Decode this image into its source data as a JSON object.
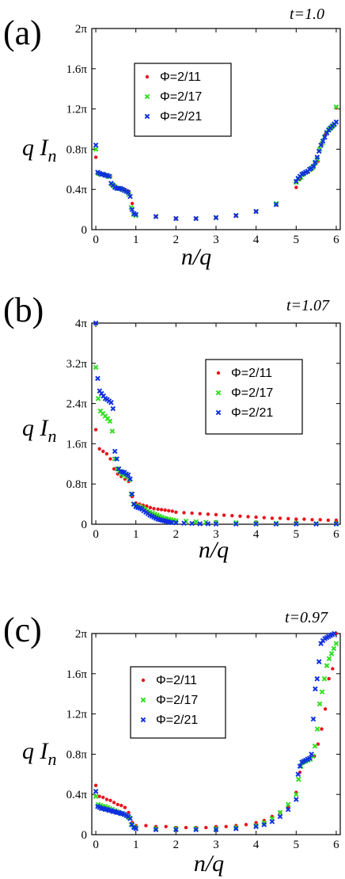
{
  "colors": {
    "red": "#e8141e",
    "green": "#33dd22",
    "blue": "#1030e0"
  },
  "chart_data": [
    {
      "type": "scatter",
      "panel": "(a)",
      "title": "t=1.0",
      "xlabel": "n/q",
      "ylabel": "q I",
      "ylabel_sub": "n",
      "xlim": [
        -0.1,
        6.1
      ],
      "ylim": [
        0,
        2
      ],
      "xticks": [
        0,
        1,
        2,
        3,
        4,
        5,
        6
      ],
      "xtick_labels": [
        "0",
        "1",
        "2",
        "3",
        "4",
        "5",
        "6"
      ],
      "yticks": [
        0,
        0.4,
        0.8,
        1.2,
        1.6,
        2.0
      ],
      "ytick_labels": [
        "0",
        "0.4π",
        "0.8π",
        "1.2π",
        "1.6π",
        "2π"
      ],
      "legend_position": "upper-left",
      "series": [
        {
          "name": "Φ=2/11",
          "color": "red",
          "marker": "dot",
          "x": [
            0,
            0.091,
            0.182,
            0.273,
            0.364,
            0.455,
            0.545,
            0.636,
            0.727,
            0.818,
            0.909,
            1.0,
            1.5,
            2.0,
            2.5,
            3.0,
            3.5,
            4.0,
            4.5,
            5.0,
            5.091,
            5.182,
            5.273,
            5.364,
            5.455,
            5.545,
            5.636,
            5.727,
            5.818,
            5.909,
            6.0
          ],
          "y": [
            0.72,
            0.56,
            0.55,
            0.54,
            0.53,
            0.44,
            0.42,
            0.41,
            0.4,
            0.38,
            0.26,
            0.15,
            0.13,
            0.11,
            0.11,
            0.12,
            0.14,
            0.18,
            0.25,
            0.42,
            0.5,
            0.55,
            0.57,
            0.6,
            0.64,
            0.68,
            0.85,
            0.95,
            1.0,
            1.03,
            1.21
          ]
        },
        {
          "name": "Φ=2/17",
          "color": "green",
          "marker": "x",
          "x": [
            0,
            0.059,
            0.118,
            0.176,
            0.235,
            0.294,
            0.353,
            0.412,
            0.471,
            0.529,
            0.588,
            0.647,
            0.706,
            0.765,
            0.824,
            0.882,
            0.941,
            1.0,
            1.5,
            2.0,
            2.5,
            3.0,
            3.5,
            4.0,
            4.5,
            5.0,
            5.059,
            5.118,
            5.176,
            5.235,
            5.294,
            5.353,
            5.412,
            5.471,
            5.529,
            5.588,
            5.647,
            5.706,
            5.765,
            5.824,
            5.882,
            5.941,
            6.0
          ],
          "y": [
            0.8,
            0.56,
            0.55,
            0.55,
            0.54,
            0.53,
            0.53,
            0.45,
            0.43,
            0.41,
            0.41,
            0.4,
            0.39,
            0.38,
            0.35,
            0.22,
            0.15,
            0.14,
            0.13,
            0.11,
            0.11,
            0.12,
            0.14,
            0.18,
            0.26,
            0.47,
            0.5,
            0.52,
            0.55,
            0.57,
            0.58,
            0.6,
            0.62,
            0.66,
            0.7,
            0.8,
            0.86,
            0.92,
            0.97,
            1.0,
            1.02,
            1.04,
            1.22
          ]
        },
        {
          "name": "Φ=2/21",
          "color": "blue",
          "marker": "x",
          "x": [
            0,
            0.048,
            0.095,
            0.143,
            0.19,
            0.238,
            0.286,
            0.333,
            0.381,
            0.429,
            0.476,
            0.524,
            0.571,
            0.619,
            0.667,
            0.714,
            0.762,
            0.81,
            0.857,
            0.905,
            0.952,
            1.0,
            1.5,
            2.0,
            2.5,
            3.0,
            3.5,
            4.0,
            4.5,
            5.0,
            5.048,
            5.095,
            5.143,
            5.19,
            5.238,
            5.286,
            5.333,
            5.381,
            5.429,
            5.476,
            5.524,
            5.571,
            5.619,
            5.667,
            5.714,
            5.762,
            5.81,
            5.857,
            5.905,
            5.952,
            6.0
          ],
          "y": [
            0.84,
            0.57,
            0.56,
            0.55,
            0.55,
            0.54,
            0.54,
            0.53,
            0.46,
            0.44,
            0.42,
            0.41,
            0.41,
            0.41,
            0.4,
            0.39,
            0.38,
            0.37,
            0.33,
            0.2,
            0.16,
            0.15,
            0.13,
            0.11,
            0.11,
            0.12,
            0.14,
            0.18,
            0.25,
            0.48,
            0.51,
            0.53,
            0.55,
            0.56,
            0.57,
            0.58,
            0.6,
            0.61,
            0.63,
            0.67,
            0.72,
            0.78,
            0.84,
            0.88,
            0.92,
            0.96,
            0.99,
            1.01,
            1.03,
            1.05,
            1.07
          ]
        }
      ]
    },
    {
      "type": "scatter",
      "panel": "(b)",
      "title": "t=1.07",
      "xlabel": "n/q",
      "ylabel": "q I",
      "ylabel_sub": "n",
      "xlim": [
        -0.1,
        6.1
      ],
      "ylim": [
        0,
        4
      ],
      "xticks": [
        0,
        1,
        2,
        3,
        4,
        5,
        6
      ],
      "xtick_labels": [
        "0",
        "1",
        "2",
        "3",
        "4",
        "5",
        "6"
      ],
      "yticks": [
        0,
        0.8,
        1.6,
        2.4,
        3.2,
        4.0
      ],
      "ytick_labels": [
        "0",
        "0.8π",
        "1.6π",
        "2.4π",
        "3.2π",
        "4π"
      ],
      "legend_position": "upper-right",
      "series": [
        {
          "name": "Φ=2/11",
          "color": "red",
          "marker": "dot",
          "x": [
            0,
            0.091,
            0.182,
            0.273,
            0.364,
            0.455,
            0.545,
            0.636,
            0.727,
            0.818,
            0.909,
            1.0,
            1.09,
            1.18,
            1.27,
            1.36,
            1.45,
            1.55,
            1.64,
            1.73,
            1.82,
            1.91,
            2.0,
            2.2,
            2.4,
            2.6,
            2.8,
            3.0,
            3.2,
            3.4,
            3.6,
            3.8,
            4.0,
            4.2,
            4.4,
            4.6,
            4.8,
            5.0,
            5.2,
            5.4,
            5.6,
            5.8,
            6.0
          ],
          "y": [
            1.88,
            1.5,
            1.45,
            1.4,
            1.3,
            1.1,
            1.0,
            0.95,
            0.9,
            0.85,
            0.55,
            0.42,
            0.4,
            0.38,
            0.36,
            0.33,
            0.31,
            0.3,
            0.29,
            0.28,
            0.27,
            0.26,
            0.24,
            0.23,
            0.22,
            0.21,
            0.2,
            0.19,
            0.18,
            0.17,
            0.16,
            0.15,
            0.14,
            0.13,
            0.12,
            0.12,
            0.11,
            0.1,
            0.1,
            0.09,
            0.09,
            0.08,
            0.08
          ]
        },
        {
          "name": "Φ=2/17",
          "color": "green",
          "marker": "x",
          "x": [
            0,
            0.059,
            0.118,
            0.176,
            0.235,
            0.294,
            0.353,
            0.412,
            0.471,
            0.529,
            0.588,
            0.647,
            0.706,
            0.765,
            0.824,
            0.882,
            0.941,
            1.0,
            1.06,
            1.12,
            1.18,
            1.24,
            1.29,
            1.35,
            1.41,
            1.47,
            1.53,
            1.59,
            1.65,
            1.71,
            1.76,
            1.82,
            1.88,
            1.94,
            2.0,
            2.25,
            2.5,
            2.75,
            3.0,
            3.5,
            4.0,
            4.5,
            5.0,
            5.5,
            6.0
          ],
          "y": [
            3.12,
            2.5,
            2.25,
            2.2,
            2.15,
            2.1,
            2.05,
            1.85,
            1.3,
            1.1,
            1.05,
            1.0,
            0.98,
            0.95,
            0.88,
            0.6,
            0.4,
            0.37,
            0.36,
            0.34,
            0.32,
            0.29,
            0.26,
            0.24,
            0.22,
            0.2,
            0.18,
            0.16,
            0.14,
            0.12,
            0.11,
            0.1,
            0.09,
            0.08,
            0.07,
            0.06,
            0.05,
            0.04,
            0.035,
            0.03,
            0.025,
            0.02,
            0.02,
            0.015,
            0.015
          ]
        },
        {
          "name": "Φ=2/21",
          "color": "blue",
          "marker": "x",
          "x": [
            0,
            0.048,
            0.095,
            0.143,
            0.19,
            0.238,
            0.286,
            0.333,
            0.381,
            0.429,
            0.476,
            0.524,
            0.571,
            0.619,
            0.667,
            0.714,
            0.762,
            0.81,
            0.857,
            0.905,
            0.952,
            1.0,
            1.05,
            1.1,
            1.15,
            1.2,
            1.25,
            1.3,
            1.35,
            1.4,
            1.45,
            1.5,
            1.55,
            1.6,
            1.65,
            1.7,
            1.75,
            1.8,
            1.85,
            1.9,
            2.0,
            2.2,
            2.4,
            2.6,
            2.8,
            3.0,
            3.5,
            4.0,
            4.5,
            5.0,
            5.5,
            6.0
          ],
          "y": [
            4.0,
            2.9,
            2.65,
            2.6,
            2.55,
            2.5,
            2.48,
            2.45,
            2.42,
            2.3,
            1.45,
            1.3,
            1.1,
            1.05,
            1.04,
            1.03,
            1.0,
            0.98,
            0.9,
            0.6,
            0.4,
            0.35,
            0.33,
            0.32,
            0.3,
            0.27,
            0.24,
            0.21,
            0.18,
            0.16,
            0.14,
            0.12,
            0.1,
            0.09,
            0.08,
            0.07,
            0.06,
            0.05,
            0.04,
            0.035,
            0.03,
            0.02,
            0.015,
            0.01,
            0.01,
            0.005,
            0.005,
            0.005,
            0.005,
            0.005,
            0.005,
            0.005
          ]
        }
      ]
    },
    {
      "type": "scatter",
      "panel": "(c)",
      "title": "t=0.97",
      "xlabel": "n/q",
      "ylabel": "q I",
      "ylabel_sub": "n",
      "xlim": [
        -0.1,
        6.1
      ],
      "ylim": [
        0,
        2
      ],
      "xticks": [
        0,
        1,
        2,
        3,
        4,
        5,
        6
      ],
      "xtick_labels": [
        "0",
        "1",
        "2",
        "3",
        "4",
        "5",
        "6"
      ],
      "yticks": [
        0,
        0.4,
        0.8,
        1.2,
        1.6,
        2.0
      ],
      "ytick_labels": [
        "0",
        "0.4π",
        "0.8π",
        "1.2π",
        "1.6π",
        "2π"
      ],
      "legend_position": "upper-left",
      "series": [
        {
          "name": "Φ=2/11",
          "color": "red",
          "marker": "dot",
          "x": [
            0,
            0.091,
            0.182,
            0.273,
            0.364,
            0.455,
            0.545,
            0.636,
            0.727,
            0.818,
            0.909,
            1.0,
            1.25,
            1.5,
            1.75,
            2.0,
            2.25,
            2.5,
            2.75,
            3.0,
            3.25,
            3.5,
            3.75,
            4.0,
            4.2,
            4.4,
            4.6,
            4.8,
            5.0,
            5.091,
            5.182,
            5.273,
            5.364,
            5.455,
            5.545,
            5.636,
            5.727,
            5.818,
            5.909,
            6.0
          ],
          "y": [
            0.49,
            0.38,
            0.37,
            0.35,
            0.34,
            0.32,
            0.3,
            0.29,
            0.27,
            0.22,
            0.12,
            0.09,
            0.09,
            0.08,
            0.08,
            0.07,
            0.07,
            0.07,
            0.07,
            0.08,
            0.08,
            0.09,
            0.1,
            0.12,
            0.14,
            0.18,
            0.22,
            0.28,
            0.42,
            0.62,
            0.72,
            0.74,
            0.76,
            0.78,
            0.9,
            1.05,
            1.25,
            1.55,
            1.65,
            2.0
          ]
        },
        {
          "name": "Φ=2/17",
          "color": "green",
          "marker": "x",
          "x": [
            0,
            0.059,
            0.118,
            0.176,
            0.235,
            0.294,
            0.353,
            0.412,
            0.471,
            0.529,
            0.588,
            0.647,
            0.706,
            0.765,
            0.824,
            0.882,
            0.941,
            1.0,
            1.5,
            2.0,
            2.5,
            3.0,
            3.5,
            4.0,
            4.2,
            4.4,
            4.6,
            4.8,
            5.0,
            5.059,
            5.118,
            5.176,
            5.235,
            5.294,
            5.353,
            5.412,
            5.471,
            5.529,
            5.588,
            5.647,
            5.706,
            5.765,
            5.824,
            5.882,
            5.941,
            6.0
          ],
          "y": [
            0.38,
            0.3,
            0.29,
            0.28,
            0.28,
            0.27,
            0.26,
            0.25,
            0.24,
            0.23,
            0.22,
            0.21,
            0.2,
            0.19,
            0.17,
            0.1,
            0.08,
            0.07,
            0.06,
            0.06,
            0.06,
            0.06,
            0.07,
            0.09,
            0.12,
            0.16,
            0.22,
            0.3,
            0.4,
            0.55,
            0.68,
            0.72,
            0.73,
            0.74,
            0.75,
            0.78,
            0.88,
            1.05,
            1.3,
            1.42,
            1.55,
            1.68,
            1.75,
            1.8,
            1.85,
            1.9
          ]
        },
        {
          "name": "Φ=2/21",
          "color": "blue",
          "marker": "x",
          "x": [
            0,
            0.048,
            0.095,
            0.143,
            0.19,
            0.238,
            0.286,
            0.333,
            0.381,
            0.429,
            0.476,
            0.524,
            0.571,
            0.619,
            0.667,
            0.714,
            0.762,
            0.81,
            0.857,
            0.905,
            0.952,
            1.0,
            1.5,
            2.0,
            2.5,
            3.0,
            3.5,
            4.0,
            4.2,
            4.4,
            4.6,
            4.8,
            5.0,
            5.048,
            5.095,
            5.143,
            5.19,
            5.238,
            5.286,
            5.333,
            5.381,
            5.429,
            5.476,
            5.524,
            5.571,
            5.619,
            5.667,
            5.714,
            5.762,
            5.81,
            5.857,
            5.905,
            5.952
          ],
          "y": [
            0.43,
            0.28,
            0.27,
            0.26,
            0.26,
            0.25,
            0.25,
            0.24,
            0.24,
            0.23,
            0.23,
            0.22,
            0.22,
            0.21,
            0.21,
            0.2,
            0.19,
            0.18,
            0.16,
            0.1,
            0.07,
            0.06,
            0.05,
            0.05,
            0.05,
            0.05,
            0.06,
            0.08,
            0.1,
            0.13,
            0.18,
            0.25,
            0.35,
            0.6,
            0.68,
            0.72,
            0.73,
            0.74,
            0.75,
            0.76,
            0.8,
            1.15,
            1.45,
            1.55,
            1.72,
            1.9,
            1.93,
            1.95,
            1.96,
            1.97,
            1.98,
            1.99,
            2.0
          ]
        }
      ]
    }
  ]
}
